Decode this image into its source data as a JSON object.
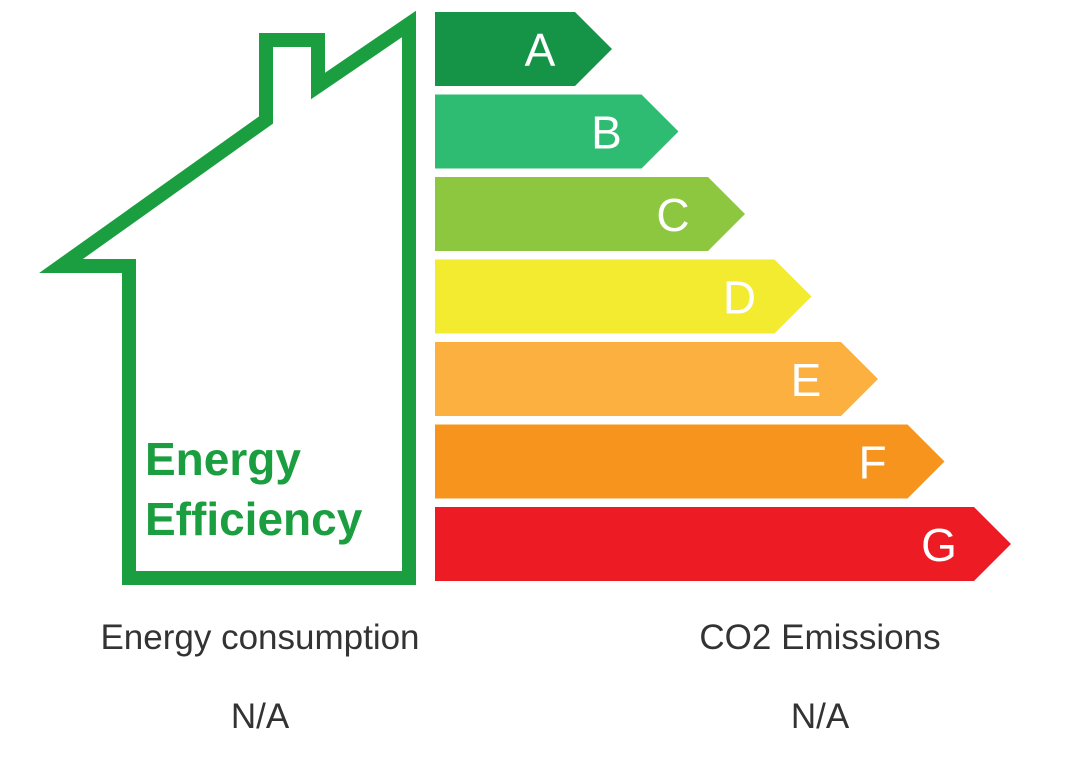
{
  "house": {
    "title_line1": "Energy",
    "title_line2": "Efficiency",
    "outline_color": "#1a9e3f",
    "text_color": "#1a9e3f"
  },
  "bands": [
    {
      "letter": "A",
      "color": "#159447"
    },
    {
      "letter": "B",
      "color": "#2ebb72"
    },
    {
      "letter": "C",
      "color": "#8dc63f"
    },
    {
      "letter": "D",
      "color": "#f2eb2f"
    },
    {
      "letter": "E",
      "color": "#fbb040"
    },
    {
      "letter": "F",
      "color": "#f7941d"
    },
    {
      "letter": "G",
      "color": "#ed1c24"
    }
  ],
  "metrics": {
    "consumption": {
      "label": "Energy consumption",
      "value": "N/A"
    },
    "emissions": {
      "label": "CO2 Emissions",
      "value": "N/A"
    }
  }
}
